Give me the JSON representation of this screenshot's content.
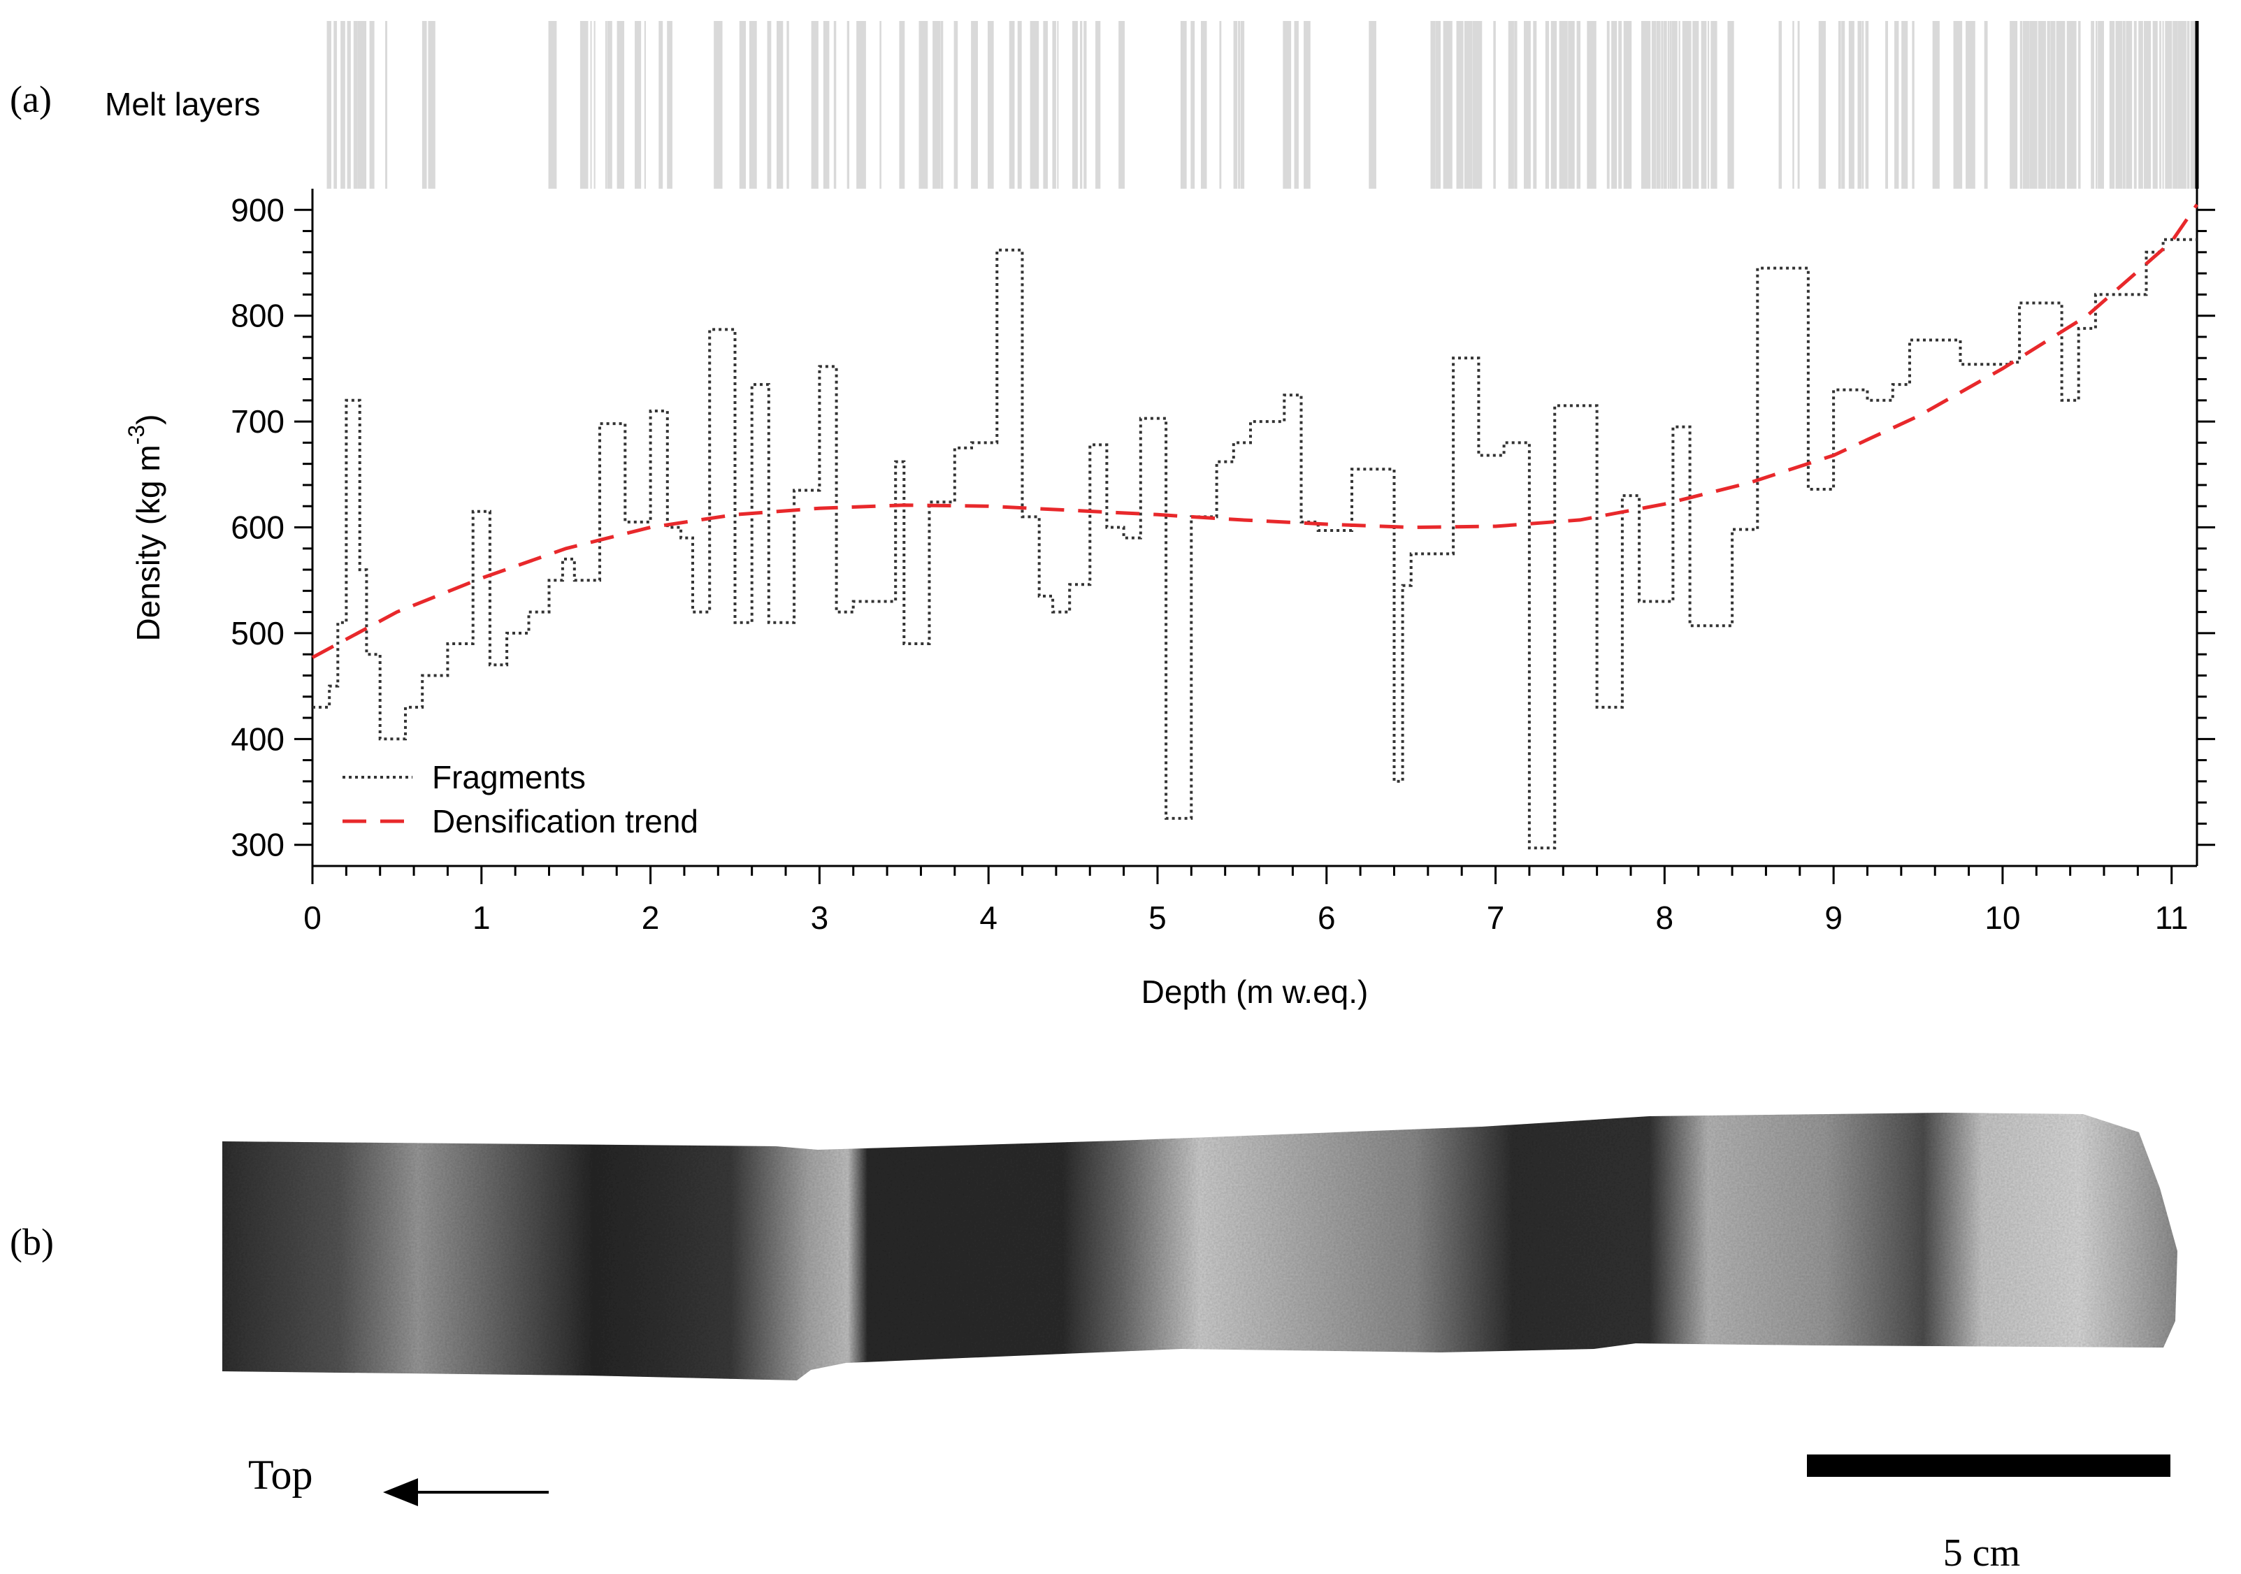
{
  "panel_a_label": "(a)",
  "panel_b_label": "(b)",
  "melt_label": "Melt layers",
  "top_label": "Top",
  "scale_label": "5 cm",
  "colors": {
    "fragments": "#333333",
    "trend": "#e8282b",
    "melt": "#d9d9d9",
    "axis": "#000000"
  },
  "chart_data": {
    "type": "line",
    "xlabel": "Depth (m w.eq.)",
    "ylabel_main": "Density (kg m",
    "ylabel_sup": "-3",
    "ylabel_close": ")",
    "xlim": [
      0,
      11.15
    ],
    "ylim": [
      280,
      920
    ],
    "xticks": [
      0,
      1,
      2,
      3,
      4,
      5,
      6,
      7,
      8,
      9,
      10,
      11
    ],
    "yticks": [
      300,
      400,
      500,
      600,
      700,
      800,
      900
    ],
    "legend_position": "bottom-left",
    "series": [
      {
        "name": "Fragments",
        "style": "dotted-step",
        "x": [
          0,
          0.1,
          0.15,
          0.2,
          0.28,
          0.32,
          0.4,
          0.55,
          0.65,
          0.8,
          0.95,
          1.05,
          1.15,
          1.28,
          1.4,
          1.48,
          1.55,
          1.7,
          1.85,
          2.0,
          2.1,
          2.18,
          2.25,
          2.35,
          2.5,
          2.6,
          2.7,
          2.85,
          3.0,
          3.1,
          3.2,
          3.35,
          3.45,
          3.5,
          3.65,
          3.8,
          3.9,
          4.05,
          4.2,
          4.3,
          4.38,
          4.48,
          4.6,
          4.7,
          4.8,
          4.9,
          5.05,
          5.2,
          5.35,
          5.45,
          5.55,
          5.75,
          5.85,
          5.95,
          6.15,
          6.4,
          6.45,
          6.5,
          6.75,
          6.9,
          7.05,
          7.2,
          7.35,
          7.6,
          7.75,
          7.85,
          8.05,
          8.15,
          8.4,
          8.55,
          8.85,
          9.0,
          9.2,
          9.35,
          9.45,
          9.75,
          10.05,
          10.1,
          10.35,
          10.45,
          10.55,
          10.65,
          10.85,
          10.95,
          11.15
        ],
        "y": [
          430,
          450,
          510,
          720,
          560,
          480,
          400,
          430,
          460,
          490,
          615,
          470,
          500,
          520,
          550,
          570,
          550,
          698,
          605,
          710,
          600,
          590,
          520,
          787,
          510,
          735,
          510,
          635,
          752,
          520,
          530,
          530,
          662,
          490,
          624,
          675,
          680,
          862,
          610,
          535,
          520,
          546,
          678,
          600,
          590,
          703,
          325,
          610,
          662,
          680,
          700,
          725,
          605,
          597,
          655,
          360,
          545,
          575,
          760,
          668,
          680,
          297,
          715,
          430,
          630,
          530,
          695,
          507,
          598,
          845,
          636,
          730,
          720,
          735,
          777,
          754,
          756,
          812,
          720,
          788,
          820,
          820,
          860,
          872,
          872
        ]
      },
      {
        "name": "Densification trend",
        "style": "dashed",
        "x": [
          0,
          0.5,
          1.0,
          1.5,
          2.0,
          2.5,
          3.0,
          3.5,
          4.0,
          4.5,
          5.0,
          5.5,
          6.0,
          6.5,
          7.0,
          7.5,
          8.0,
          8.5,
          9.0,
          9.5,
          10.0,
          10.5,
          11.0,
          11.15
        ],
        "y": [
          477,
          520,
          552,
          580,
          600,
          612,
          618,
          621,
          620,
          616,
          612,
          607,
          603,
          600,
          601,
          607,
          622,
          642,
          668,
          705,
          750,
          800,
          870,
          905
        ]
      }
    ]
  }
}
